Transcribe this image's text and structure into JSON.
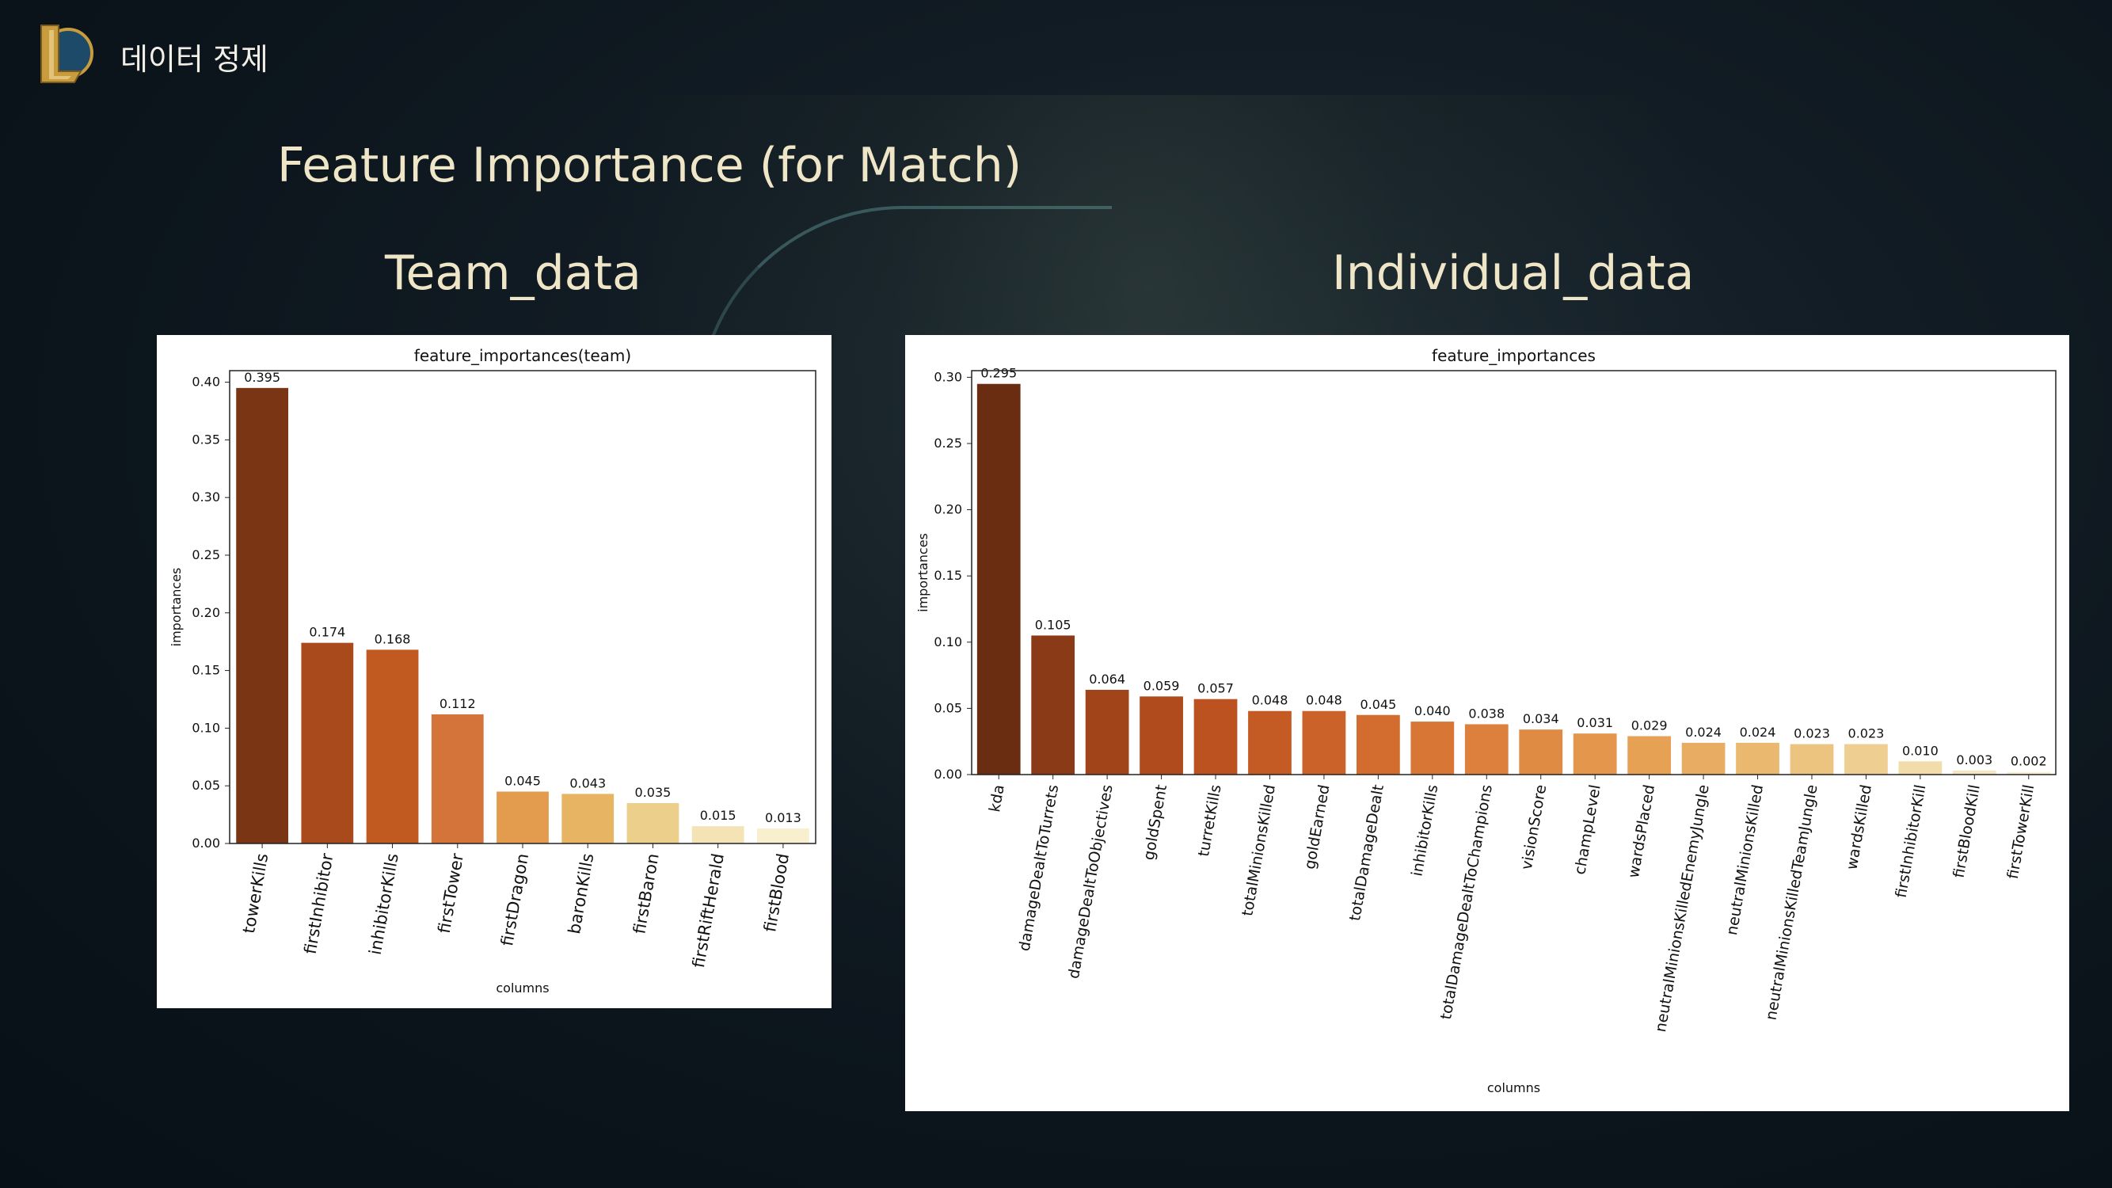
{
  "header": {
    "title": "데이터 정제"
  },
  "slide": {
    "title": "Feature Importance (for Match)",
    "left_heading": "Team_data",
    "right_heading": "Individual_data"
  },
  "colors": {
    "title_text": "#efe6c8",
    "background": "#0b141b"
  },
  "chart_data": [
    {
      "type": "bar",
      "title": "feature_importances(team)",
      "xlabel": "columns",
      "ylabel": "importances",
      "ylim": [
        0,
        0.41
      ],
      "yticks": [
        "0.00",
        "0.05",
        "0.10",
        "0.15",
        "0.20",
        "0.25",
        "0.30",
        "0.35",
        "0.40"
      ],
      "categories": [
        "towerKills",
        "firstInhibitor",
        "inhibitorKills",
        "firstTower",
        "firstDragon",
        "baronKills",
        "firstBaron",
        "firstRiftHerald",
        "firstBlood"
      ],
      "values": [
        0.395,
        0.174,
        0.168,
        0.112,
        0.045,
        0.043,
        0.035,
        0.015,
        0.013
      ],
      "labels": [
        "0.395",
        "0.174",
        "0.168",
        "0.112",
        "0.045",
        "0.043",
        "0.035",
        "0.015",
        "0.013"
      ],
      "colors": [
        "#7a3515",
        "#a84a1c",
        "#c05a21",
        "#d4743a",
        "#e39b4d",
        "#e7b463",
        "#edcf8c",
        "#f3e3b5",
        "#f8efcf"
      ]
    },
    {
      "type": "bar",
      "title": "feature_importances",
      "xlabel": "columns",
      "ylabel": "importances",
      "ylim": [
        0,
        0.305
      ],
      "yticks": [
        "0.00",
        "0.05",
        "0.10",
        "0.15",
        "0.20",
        "0.25",
        "0.30"
      ],
      "categories": [
        "kda",
        "damageDealtToTurrets",
        "damageDealtToObjectives",
        "goldSpent",
        "turretKills",
        "totalMinionsKilled",
        "goldEarned",
        "totalDamageDealt",
        "inhibitorKills",
        "totalDamageDealtToChampions",
        "visionScore",
        "champLevel",
        "wardsPlaced",
        "neutralMinionsKilledEnemyJungle",
        "neutralMinionsKilled",
        "neutralMinionsKilledTeamJungle",
        "wardsKilled",
        "firstInhibitorKill",
        "firstBloodKill",
        "firstTowerKill"
      ],
      "values": [
        0.295,
        0.105,
        0.064,
        0.059,
        0.057,
        0.048,
        0.048,
        0.045,
        0.04,
        0.038,
        0.034,
        0.031,
        0.029,
        0.024,
        0.024,
        0.023,
        0.023,
        0.01,
        0.003,
        0.002
      ],
      "labels": [
        "0.295",
        "0.105",
        "0.064",
        "0.059",
        "0.057",
        "0.048",
        "0.048",
        "0.045",
        "0.040",
        "0.038",
        "0.034",
        "0.031",
        "0.029",
        "0.024",
        "0.024",
        "0.023",
        "0.023",
        "0.010",
        "0.003",
        "0.002"
      ],
      "colors": [
        "#6b2d12",
        "#8a3a16",
        "#a2441a",
        "#b04b1d",
        "#bb5220",
        "#c45a24",
        "#cb6229",
        "#d26c2f",
        "#d87636",
        "#dd803d",
        "#e08b44",
        "#e3964c",
        "#e6a155",
        "#e8ad62",
        "#eab96f",
        "#edc47f",
        "#efcf91",
        "#f2dcaa",
        "#f5e5c0",
        "#f8eed4"
      ]
    }
  ]
}
